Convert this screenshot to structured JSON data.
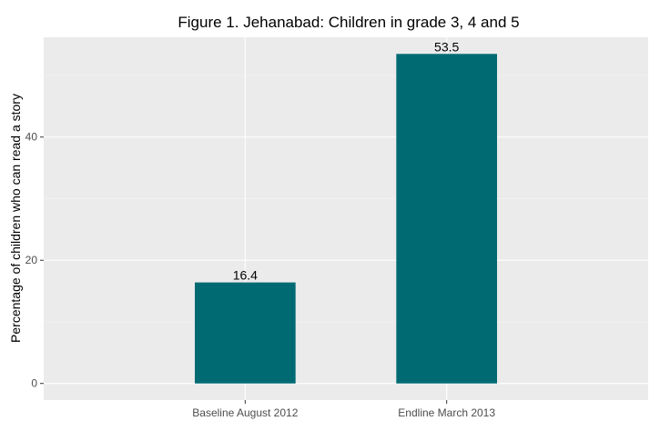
{
  "chart_data": {
    "type": "bar",
    "title": "Figure 1. Jehanabad: Children in grade 3, 4 and 5",
    "xlabel": "",
    "ylabel": "Percentage of children who can read a story",
    "categories": [
      "Baseline August 2012",
      "Endline March 2013"
    ],
    "values": [
      16.4,
      53.5
    ],
    "data_labels": [
      "16.4",
      "53.5"
    ],
    "ylim": [
      -2.7,
      56.2
    ],
    "y_ticks": [
      0,
      20,
      40
    ],
    "y_tick_labels": [
      "0",
      "20",
      "40"
    ],
    "grid": true,
    "legend": "none",
    "colors": {
      "bar": "#006a73",
      "panel_background": "#ebebeb",
      "grid_major": "#ffffff",
      "grid_minor": "#f5f5f5"
    }
  }
}
